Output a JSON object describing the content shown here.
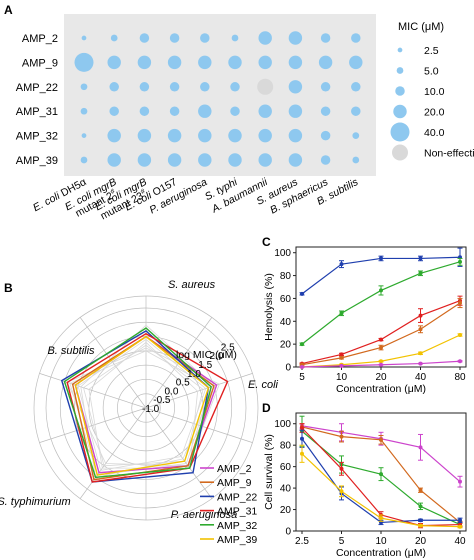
{
  "panels": {
    "a": "A",
    "b": "B",
    "c": "C",
    "d": "D"
  },
  "chart_data": [
    {
      "panel": "A",
      "type": "scatter",
      "chart_kind": "bubble-matrix",
      "rows": [
        "AMP_2",
        "AMP_9",
        "AMP_22",
        "AMP_31",
        "AMP_32",
        "AMP_39"
      ],
      "columns": [
        "E. coli DH5α",
        "E. coli mgrB mutant 2#",
        "E. coli mgrB mutant 23#",
        "E. coli O157",
        "P. aeruginosa",
        "S. typhi",
        "A. baumannii",
        "S. aureus",
        "B. sphaericus",
        "B. subtilis"
      ],
      "column_labels": [
        {
          "italic": "E. coli",
          "rest": " DH5α",
          "sup": ""
        },
        {
          "italic": "E. coli mgrB",
          "rest": "",
          "line2": "mutant 2",
          "sup": "#"
        },
        {
          "italic": "E. coli mgrB",
          "rest": "",
          "line2": "mutant 23",
          "sup": "#"
        },
        {
          "italic": "E. coli",
          "rest": " O157",
          "sup": ""
        },
        {
          "italic": "P. aeruginosa",
          "rest": "",
          "sup": ""
        },
        {
          "italic": "S. typhi",
          "rest": "",
          "sup": ""
        },
        {
          "italic": "A. baumannii",
          "rest": "",
          "sup": ""
        },
        {
          "italic": "S. aureus",
          "rest": "",
          "sup": ""
        },
        {
          "italic": "B. sphaericus",
          "rest": "",
          "sup": ""
        },
        {
          "italic": "B. subtilis",
          "rest": "",
          "sup": ""
        }
      ],
      "mic_uM": [
        [
          2.5,
          5,
          10,
          10,
          10,
          5,
          20,
          20,
          10,
          10
        ],
        [
          40,
          20,
          20,
          20,
          20,
          20,
          20,
          20,
          20,
          20
        ],
        [
          5,
          10,
          10,
          10,
          10,
          10,
          null,
          20,
          10,
          10
        ],
        [
          5,
          10,
          10,
          10,
          20,
          10,
          20,
          20,
          10,
          10
        ],
        [
          2.5,
          20,
          20,
          20,
          20,
          20,
          20,
          20,
          10,
          5
        ],
        [
          5,
          20,
          20,
          20,
          20,
          20,
          20,
          20,
          10,
          5
        ]
      ],
      "legend": {
        "title": "MIC (μM)",
        "items": [
          {
            "label": "2.5",
            "value": 2.5
          },
          {
            "label": "5.0",
            "value": 5
          },
          {
            "label": "10.0",
            "value": 10
          },
          {
            "label": "20.0",
            "value": 20
          },
          {
            "label": "40.0",
            "value": 40
          },
          {
            "label": "Non-effective",
            "value": null
          }
        ]
      },
      "colors": {
        "bubble": "#8ec8ef",
        "non_effective": "#d9d9d9",
        "panel_bg": "#e8e8e8"
      }
    },
    {
      "panel": "B",
      "type": "line",
      "chart_kind": "radar",
      "axes": [
        "S. aureus",
        "E. coli",
        "P. aeruginosa",
        "S. typhimurium",
        "B. subtilis"
      ],
      "radial_label": "log MIC (μM)",
      "radial_ticks": [
        "-1.0",
        "-0.5",
        "0.0",
        "0.5",
        "1.0",
        "1.5",
        "2.0",
        "2.5"
      ],
      "rlim": [
        -1.0,
        2.5
      ],
      "series": [
        {
          "name": "AMP_2",
          "color": "#cc44cc",
          "values": [
            1.5,
            1.6,
            1.5,
            1.8,
            1.6
          ]
        },
        {
          "name": "AMP_9",
          "color": "#d2691e",
          "values": [
            1.5,
            1.5,
            1.5,
            2.1,
            1.7
          ]
        },
        {
          "name": "AMP_22",
          "color": "#1f3fae",
          "values": [
            1.7,
            1.3,
            1.8,
            2.2,
            2.1
          ]
        },
        {
          "name": "AMP_31",
          "color": "#e02020",
          "values": [
            1.6,
            2.0,
            1.6,
            2.2,
            1.9
          ]
        },
        {
          "name": "AMP_32",
          "color": "#2eaa2e",
          "values": [
            1.8,
            1.4,
            1.6,
            2.0,
            2.0
          ]
        },
        {
          "name": "AMP_39",
          "color": "#f2c200",
          "values": [
            1.5,
            1.3,
            1.3,
            1.9,
            1.6
          ]
        }
      ],
      "legend": [
        "AMP_2",
        "AMP_9",
        "AMP_22",
        "AMP_31",
        "AMP_32",
        "AMP_39"
      ]
    },
    {
      "panel": "C",
      "type": "line",
      "x": [
        5,
        10,
        20,
        40,
        80
      ],
      "xlabel": "Concentration (μM)",
      "ylabel": "Hemolysis (%)",
      "xticks": [
        "5",
        "10",
        "20",
        "40",
        "80"
      ],
      "yticks": [
        "0",
        "20",
        "40",
        "60",
        "80",
        "100"
      ],
      "ylim": [
        0,
        105
      ],
      "series": [
        {
          "name": "AMP_22",
          "color": "#1f3fae",
          "values": [
            64,
            90,
            95,
            95,
            96
          ],
          "err": [
            1,
            3,
            2,
            2,
            8
          ]
        },
        {
          "name": "AMP_32",
          "color": "#2eaa2e",
          "values": [
            20,
            47,
            67,
            82,
            92
          ],
          "err": [
            1,
            2,
            4,
            2,
            3
          ]
        },
        {
          "name": "AMP_31",
          "color": "#e02020",
          "values": [
            3,
            11,
            24,
            45,
            58
          ],
          "err": [
            0.5,
            1,
            1,
            6,
            4
          ]
        },
        {
          "name": "AMP_9",
          "color": "#d2691e",
          "values": [
            2,
            8,
            17,
            33,
            56
          ],
          "err": [
            0.5,
            1,
            2,
            3,
            4
          ]
        },
        {
          "name": "AMP_39",
          "color": "#f2c200",
          "values": [
            0,
            2,
            5,
            12,
            28
          ],
          "err": [
            0.3,
            0.5,
            0.5,
            1,
            1
          ]
        },
        {
          "name": "AMP_2",
          "color": "#cc44cc",
          "values": [
            0,
            1,
            2,
            3,
            5
          ],
          "err": [
            0.2,
            0.2,
            0.3,
            0.3,
            0.5
          ]
        }
      ]
    },
    {
      "panel": "D",
      "type": "line",
      "x": [
        2.5,
        5,
        10,
        20,
        40
      ],
      "xlabel": "Concentration (μM)",
      "ylabel": "Cell survival (%)",
      "xticks": [
        "2.5",
        "5",
        "10",
        "20",
        "40"
      ],
      "yticks": [
        "0",
        "20",
        "40",
        "60",
        "80",
        "100"
      ],
      "ylim": [
        0,
        110
      ],
      "series": [
        {
          "name": "AMP_2",
          "color": "#cc44cc",
          "values": [
            98,
            92,
            86,
            78,
            46
          ],
          "err": [
            2,
            8,
            6,
            12,
            5
          ]
        },
        {
          "name": "AMP_9",
          "color": "#d2691e",
          "values": [
            97,
            88,
            85,
            38,
            8
          ],
          "err": [
            3,
            5,
            4,
            2,
            1
          ]
        },
        {
          "name": "AMP_32",
          "color": "#2eaa2e",
          "values": [
            93,
            62,
            53,
            23,
            6
          ],
          "err": [
            14,
            8,
            6,
            3,
            2
          ]
        },
        {
          "name": "AMP_31",
          "color": "#e02020",
          "values": [
            96,
            58,
            15,
            5,
            6
          ],
          "err": [
            4,
            6,
            3,
            2,
            2
          ]
        },
        {
          "name": "AMP_22",
          "color": "#1f3fae",
          "values": [
            86,
            35,
            8,
            10,
            10
          ],
          "err": [
            8,
            6,
            2,
            1,
            2
          ]
        },
        {
          "name": "AMP_39",
          "color": "#f2c200",
          "values": [
            72,
            37,
            12,
            5,
            4
          ],
          "err": [
            8,
            5,
            3,
            1,
            1
          ]
        }
      ]
    }
  ]
}
